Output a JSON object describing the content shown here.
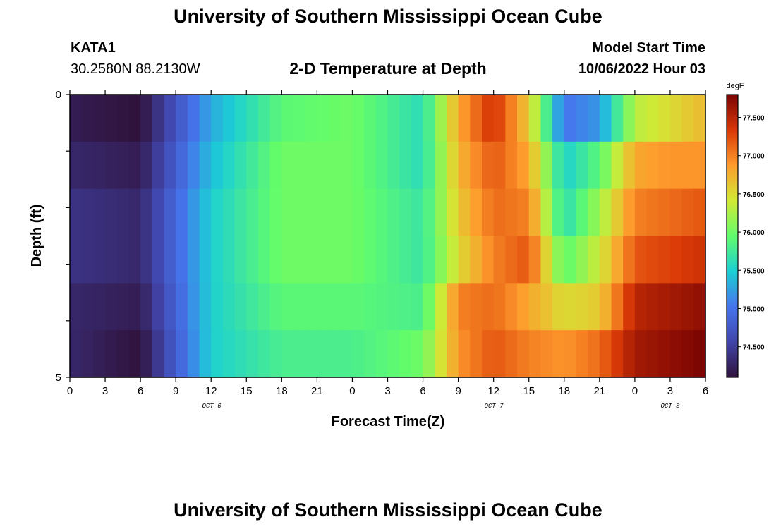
{
  "header": {
    "title": "University of Southern Mississippi Ocean Cube",
    "station": "KATA1",
    "coords": "30.2580N  88.2130W",
    "subtitle": "2-D Temperature at Depth",
    "start_label": "Model Start Time",
    "start_value": "10/06/2022 Hour 03"
  },
  "footer": {
    "title": "University of Southern Mississippi Ocean Cube"
  },
  "chart_data": {
    "type": "heatmap",
    "xlabel": "Forecast Time(Z)",
    "ylabel": "Depth (ft)",
    "y_tick_labels": [
      "0",
      "5"
    ],
    "ylim": [
      0,
      5
    ],
    "x_tick_labels": [
      "0",
      "3",
      "6",
      "9",
      "12",
      "15",
      "18",
      "21",
      "0",
      "3",
      "6",
      "9",
      "12",
      "15",
      "18",
      "21",
      "0",
      "3",
      "6"
    ],
    "date_labels": [
      "OCT 6",
      "OCT 7",
      "OCT 8"
    ],
    "colorbar": {
      "unit": "degF",
      "tick_labels": [
        "74.500",
        "75.000",
        "75.500",
        "76.000",
        "76.500",
        "77.000",
        "77.500"
      ],
      "range": [
        74.1,
        77.8
      ]
    },
    "depth_levels_ft": [
      0,
      1,
      2,
      3,
      4,
      5
    ],
    "time_hours": [
      0,
      6,
      12,
      18,
      24,
      30,
      33,
      36,
      39,
      42,
      45,
      48,
      51,
      54
    ],
    "temperature_degF": [
      [
        74.2,
        74.1,
        75.3,
        75.9,
        76.0,
        75.6,
        76.8,
        77.4,
        76.6,
        75.0,
        75.2,
        76.3,
        76.5,
        76.7
      ],
      [
        74.3,
        74.2,
        75.4,
        76.0,
        76.0,
        75.6,
        76.7,
        77.2,
        76.8,
        75.5,
        75.9,
        76.8,
        76.9,
        76.9
      ],
      [
        74.4,
        74.3,
        75.5,
        76.0,
        76.0,
        75.7,
        76.6,
        77.1,
        77.0,
        75.6,
        76.2,
        77.0,
        77.1,
        77.2
      ],
      [
        74.4,
        74.3,
        75.5,
        76.0,
        76.0,
        75.7,
        76.5,
        77.0,
        77.2,
        75.9,
        76.4,
        77.2,
        77.3,
        77.4
      ],
      [
        74.3,
        74.2,
        75.5,
        75.9,
        75.9,
        75.8,
        77.0,
        77.1,
        76.8,
        76.5,
        76.6,
        77.5,
        77.6,
        77.7
      ],
      [
        74.3,
        74.1,
        75.5,
        75.8,
        75.8,
        76.0,
        76.9,
        77.2,
        77.0,
        76.9,
        77.1,
        77.6,
        77.7,
        77.8
      ]
    ]
  }
}
